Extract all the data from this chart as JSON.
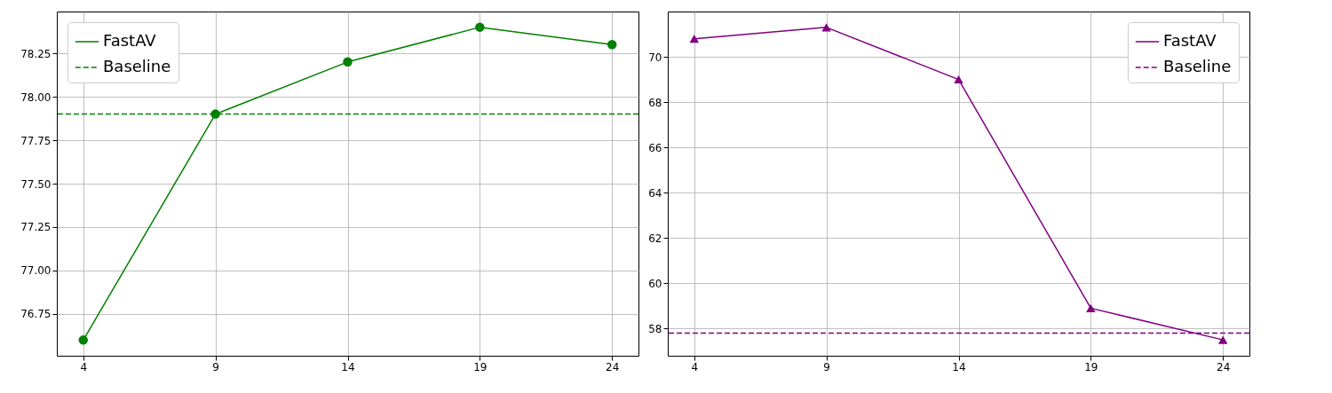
{
  "chart_data": [
    {
      "type": "line",
      "x": [
        4,
        9,
        14,
        19,
        24
      ],
      "series": [
        {
          "name": "FastAV",
          "color": "#008000",
          "values": [
            76.6,
            77.9,
            78.2,
            78.4,
            78.3
          ]
        }
      ],
      "ref_lines": [
        {
          "axis": "y",
          "value": 77.9,
          "label": "Baseline",
          "color": "#008000",
          "line_style": "dashed"
        }
      ],
      "xlim": [
        3,
        25
      ],
      "xticks": [
        4,
        9,
        14,
        19,
        24
      ],
      "ylim": [
        76.51,
        78.49
      ],
      "yticks": [
        {
          "value": 76.75,
          "label": "76.75"
        },
        {
          "value": 77,
          "label": "77.00"
        },
        {
          "value": 77.25,
          "label": "77.25"
        },
        {
          "value": 77.5,
          "label": "77.50"
        },
        {
          "value": 77.75,
          "label": "77.75"
        },
        {
          "value": 78,
          "label": "78.00"
        },
        {
          "value": 78.25,
          "label": "78.25"
        }
      ],
      "grid": true,
      "legend": "top left",
      "marker": "circle",
      "line_style": "solid"
    },
    {
      "type": "line",
      "x": [
        4,
        9,
        14,
        19,
        24
      ],
      "series": [
        {
          "name": "FastAV",
          "color": "#800080",
          "values": [
            70.8,
            71.3,
            69.0,
            58.9,
            57.5
          ]
        }
      ],
      "ref_lines": [
        {
          "axis": "y",
          "value": 57.8,
          "label": "Baseline",
          "color": "#800080",
          "line_style": "dashed"
        }
      ],
      "xlim": [
        3,
        25
      ],
      "xticks": [
        4,
        9,
        14,
        19,
        24
      ],
      "ylim": [
        56.8,
        72.0
      ],
      "yticks": [
        58,
        60,
        62,
        64,
        66,
        68,
        70
      ],
      "grid": true,
      "legend": "top right",
      "marker": "triangle",
      "line_style": "solid"
    }
  ]
}
